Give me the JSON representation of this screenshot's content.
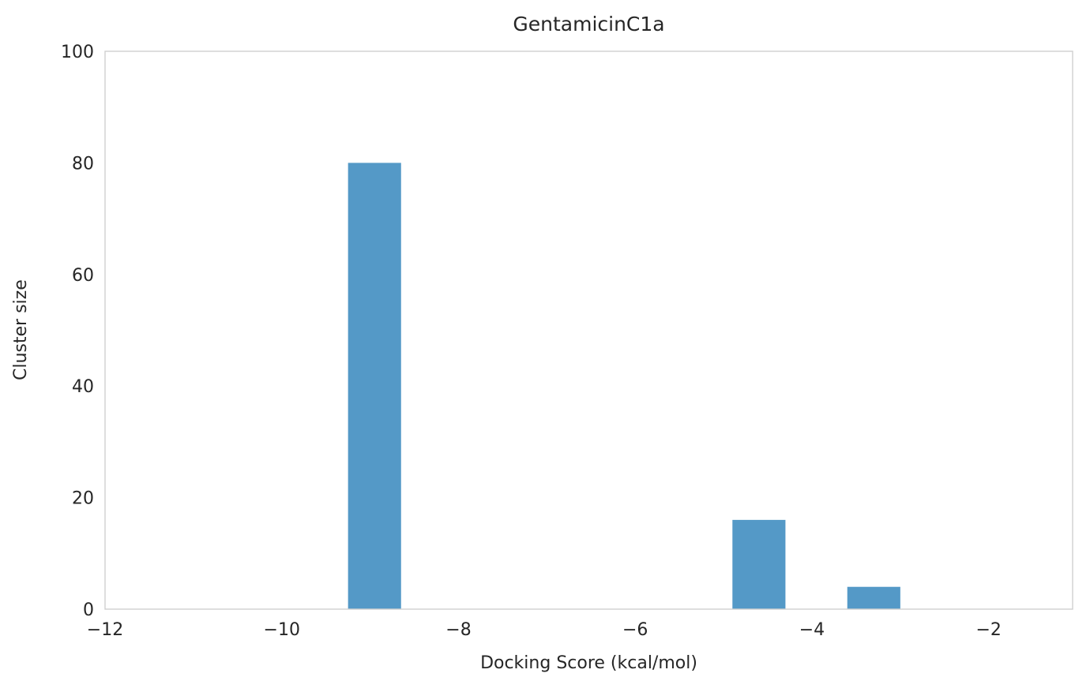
{
  "chart_data": {
    "type": "bar",
    "title": "GentamicinC1a",
    "xlabel": "Docking Score (kcal/mol)",
    "ylabel": "Cluster size",
    "xlim": [
      -12,
      -1.05
    ],
    "ylim": [
      0,
      100
    ],
    "xticks": [
      -12,
      -10,
      -8,
      -6,
      -4,
      -2
    ],
    "yticks": [
      0,
      20,
      40,
      60,
      80,
      100
    ],
    "bars": [
      {
        "x": -8.95,
        "width": 0.6,
        "value": 80
      },
      {
        "x": -4.6,
        "width": 0.6,
        "value": 16
      },
      {
        "x": -3.3,
        "width": 0.6,
        "value": 4
      }
    ],
    "bar_color": "#5499c7",
    "spine_color": "#cfcfcf",
    "text_color": "#262626",
    "grid": false,
    "legend_position": "none"
  }
}
